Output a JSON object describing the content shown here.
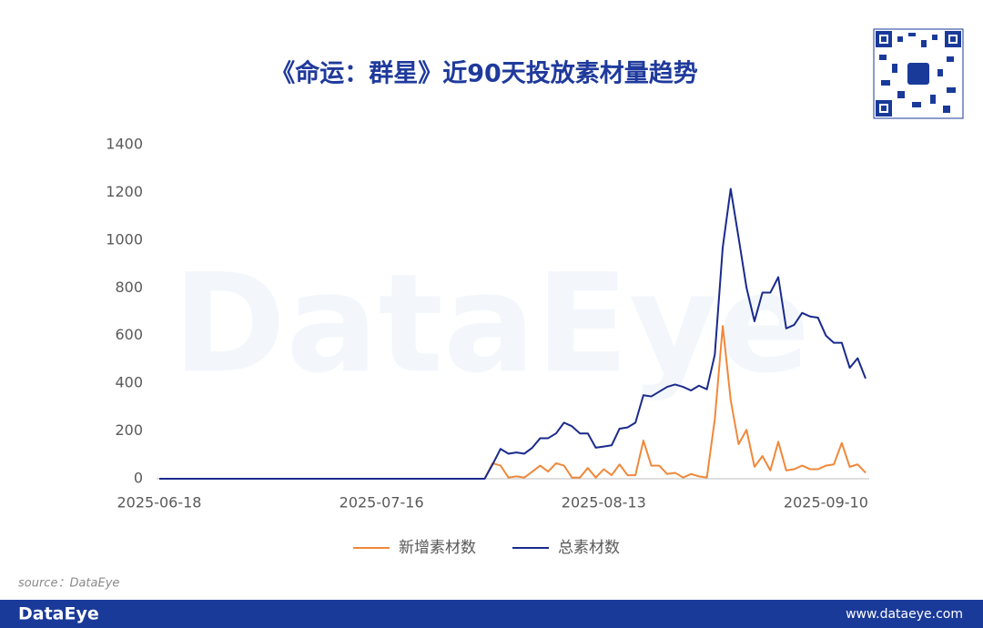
{
  "chart_data": {
    "type": "line",
    "title": "《命运：群星》近90天投放素材量趋势",
    "watermark": "DataEye",
    "categories": [
      "2025-06-18",
      null,
      null,
      null,
      null,
      null,
      null,
      null,
      null,
      null,
      null,
      null,
      null,
      null,
      null,
      null,
      null,
      null,
      null,
      null,
      null,
      null,
      null,
      null,
      null,
      null,
      null,
      null,
      "2025-07-16",
      null,
      null,
      null,
      null,
      null,
      null,
      null,
      null,
      null,
      null,
      null,
      null,
      null,
      null,
      null,
      null,
      null,
      null,
      null,
      null,
      null,
      null,
      null,
      null,
      null,
      null,
      null,
      "2025-08-13",
      null,
      null,
      null,
      null,
      null,
      null,
      null,
      null,
      null,
      null,
      null,
      null,
      null,
      null,
      null,
      null,
      null,
      null,
      null,
      null,
      null,
      null,
      null,
      null,
      null,
      null,
      null,
      "2025-09-10",
      null,
      null,
      null,
      null,
      null
    ],
    "series": [
      {
        "name": "新增素材数",
        "color": "#f0883a",
        "values": [
          0,
          0,
          0,
          0,
          0,
          0,
          0,
          0,
          0,
          0,
          0,
          0,
          0,
          0,
          0,
          0,
          0,
          0,
          0,
          0,
          0,
          0,
          0,
          0,
          0,
          0,
          0,
          0,
          0,
          0,
          0,
          0,
          0,
          0,
          0,
          0,
          0,
          0,
          0,
          0,
          0,
          0,
          65,
          55,
          5,
          10,
          5,
          30,
          55,
          30,
          65,
          55,
          5,
          5,
          45,
          5,
          40,
          15,
          60,
          15,
          15,
          160,
          55,
          55,
          20,
          25,
          5,
          20,
          10,
          5,
          250,
          640,
          330,
          145,
          205,
          50,
          95,
          35,
          155,
          35,
          40,
          55,
          40,
          40,
          55,
          60,
          150,
          50,
          60,
          25
        ]
      },
      {
        "name": "总素材数",
        "color": "#1a2a8c",
        "values": [
          0,
          0,
          0,
          0,
          0,
          0,
          0,
          0,
          0,
          0,
          0,
          0,
          0,
          0,
          0,
          0,
          0,
          0,
          0,
          0,
          0,
          0,
          0,
          0,
          0,
          0,
          0,
          0,
          0,
          0,
          0,
          0,
          0,
          0,
          0,
          0,
          0,
          0,
          0,
          0,
          0,
          0,
          60,
          125,
          105,
          110,
          105,
          130,
          170,
          170,
          190,
          235,
          220,
          190,
          190,
          130,
          135,
          140,
          210,
          215,
          235,
          350,
          345,
          365,
          385,
          395,
          385,
          370,
          390,
          375,
          520,
          970,
          1215,
          1010,
          800,
          660,
          780,
          780,
          845,
          630,
          645,
          695,
          680,
          675,
          600,
          570,
          570,
          465,
          505,
          420
        ]
      }
    ],
    "ylim": [
      0,
      1400
    ],
    "yticks": [
      0,
      200,
      400,
      600,
      800,
      1000,
      1200,
      1400
    ],
    "grid": false,
    "legend": "bottom"
  },
  "source": "source：DataEye",
  "footer": {
    "brand": "DataEye",
    "url": "www.dataeye.com"
  }
}
